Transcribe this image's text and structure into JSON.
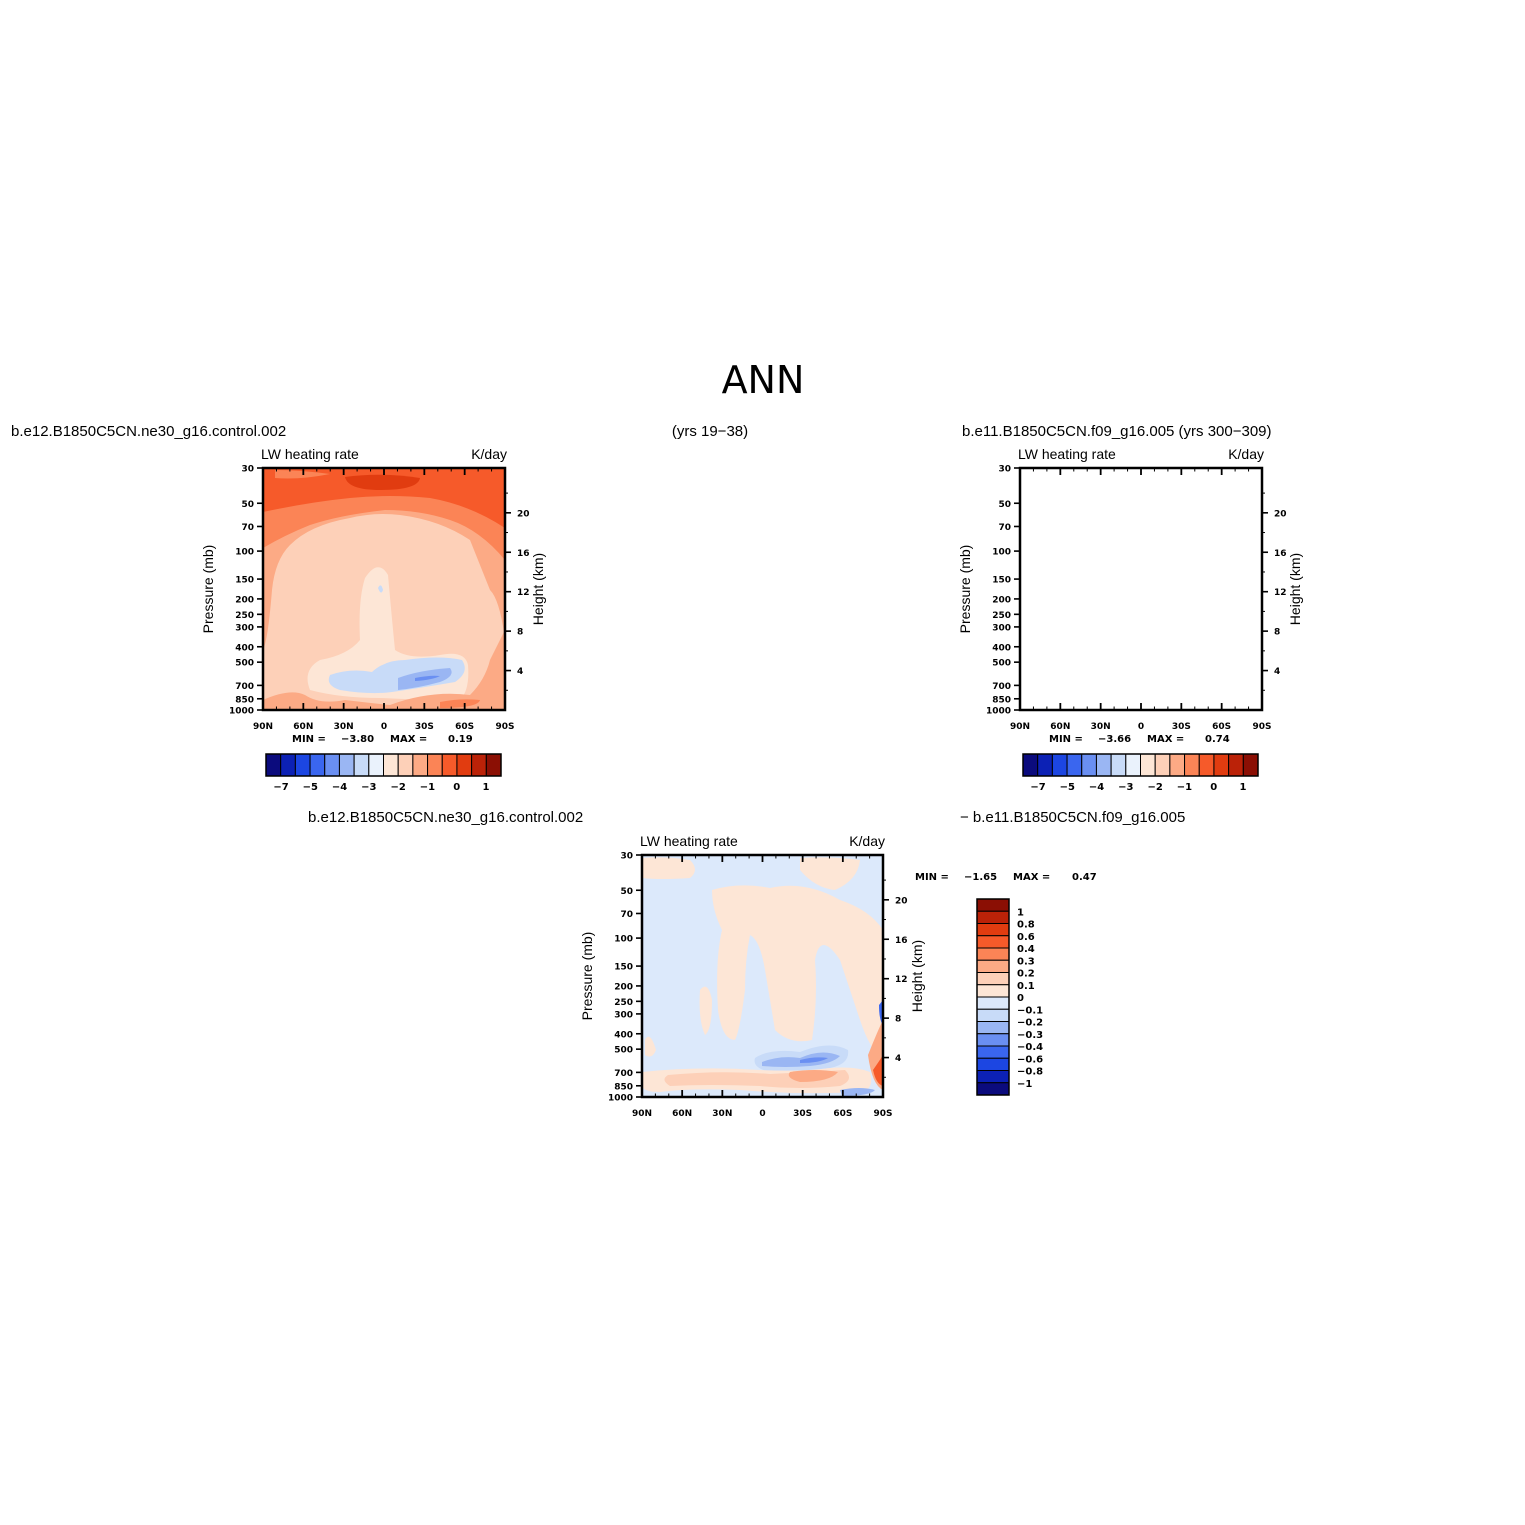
{
  "figure": {
    "title": "ANN",
    "header_left": "b.e12.B1850C5CN.ne30_g16.control.002",
    "header_center": "(yrs 19−38)",
    "header_right": "b.e11.B1850C5CN.f09_g16.005 (yrs 300−309)",
    "diff_left": "b.e12.B1850C5CN.ne30_g16.control.002",
    "diff_right": "− b.e11.B1850C5CN.f09_g16.005"
  },
  "colors": {
    "main_fill_levels": [
      "#0b0b7d",
      "#0c21b5",
      "#1c46e2",
      "#3a66ef",
      "#6a8ff2",
      "#9ab6f3",
      "#c8dbf8",
      "#eaf2fc",
      "#fde6d6",
      "#fdd0b8",
      "#fcaa85",
      "#fb8456",
      "#f65a2a",
      "#e13c10",
      "#bb2208",
      "#8b0f04"
    ],
    "diff_fill_levels": [
      "#0b0b7d",
      "#0c21b5",
      "#1c46e2",
      "#3a66ef",
      "#6a8ff2",
      "#9ab6f3",
      "#c8dbf8",
      "#dce9fb",
      "#fde6d6",
      "#fdd0b8",
      "#fcaa85",
      "#fb8456",
      "#f65a2a",
      "#e13c10",
      "#bb2208",
      "#8b0f04"
    ]
  },
  "chart_data": [
    {
      "type": "heatmap",
      "panel": "top-left",
      "label_left": "LW heating rate",
      "label_right": "K/day",
      "xlabel": "",
      "ylabel": "Pressure (mb)",
      "ylabel_right": "Height (km)",
      "x_ticks": [
        "90N",
        "60N",
        "30N",
        "0",
        "30S",
        "60S",
        "90S"
      ],
      "y_ticks": [
        "30",
        "50",
        "70",
        "100",
        "150",
        "200",
        "250",
        "300",
        "400",
        "500",
        "700",
        "850",
        "1000"
      ],
      "y_ticks_right": [
        "20",
        "16",
        "12",
        "8",
        "4"
      ],
      "stats_min_label": "MIN =",
      "stats_min": "−3.80",
      "stats_max_label": "MAX =",
      "stats_max": "0.19",
      "colorbar_ticks": [
        "−7",
        "−5",
        "−4",
        "−3",
        "−2",
        "−1",
        "0",
        "1"
      ]
    },
    {
      "type": "heatmap",
      "panel": "top-right",
      "label_left": "LW heating rate",
      "label_right": "K/day",
      "xlabel": "",
      "ylabel": "Pressure (mb)",
      "ylabel_right": "Height (km)",
      "x_ticks": [
        "90N",
        "60N",
        "30N",
        "0",
        "30S",
        "60S",
        "90S"
      ],
      "y_ticks": [
        "30",
        "50",
        "70",
        "100",
        "150",
        "200",
        "250",
        "300",
        "400",
        "500",
        "700",
        "850",
        "1000"
      ],
      "y_ticks_right": [
        "20",
        "16",
        "12",
        "8",
        "4"
      ],
      "stats_min_label": "MIN =",
      "stats_min": "−3.66",
      "stats_max_label": "MAX =",
      "stats_max": "0.74",
      "colorbar_ticks": [
        "−7",
        "−5",
        "−4",
        "−3",
        "−2",
        "−1",
        "0",
        "1"
      ]
    },
    {
      "type": "heatmap",
      "panel": "bottom-difference",
      "label_left": "LW heating rate",
      "label_right": "K/day",
      "xlabel": "",
      "ylabel": "Pressure (mb)",
      "ylabel_right": "Height (km)",
      "x_ticks": [
        "90N",
        "60N",
        "30N",
        "0",
        "30S",
        "60S",
        "90S"
      ],
      "y_ticks": [
        "30",
        "50",
        "70",
        "100",
        "150",
        "200",
        "250",
        "300",
        "400",
        "500",
        "700",
        "850",
        "1000"
      ],
      "y_ticks_right": [
        "20",
        "16",
        "12",
        "8",
        "4"
      ],
      "stats_min_label": "MIN =",
      "stats_min": "−1.65",
      "stats_max_label": "MAX =",
      "stats_max": "0.47",
      "colorbar_ticks": [
        "1",
        "0.8",
        "0.6",
        "0.4",
        "0.3",
        "0.2",
        "0.1",
        "0",
        "−0.1",
        "−0.2",
        "−0.3",
        "−0.4",
        "−0.6",
        "−0.8",
        "−1"
      ]
    }
  ]
}
